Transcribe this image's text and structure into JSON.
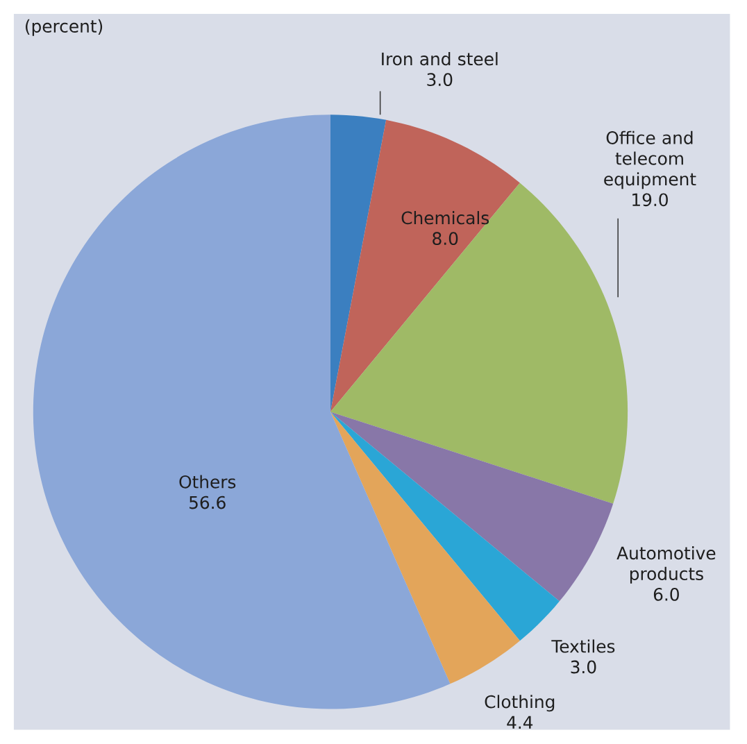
{
  "chart_data": {
    "type": "pie",
    "title": "(percent)",
    "categories": [
      "Iron and steel",
      "Chemicals",
      "Office and telecom equipment",
      "Automotive products",
      "Textiles",
      "Clothing",
      "Others"
    ],
    "values": [
      3.0,
      8.0,
      19.0,
      6.0,
      3.0,
      4.4,
      56.6
    ],
    "colors": [
      "#3b7fc0",
      "#c0645a",
      "#9fba66",
      "#8877a8",
      "#2aa6d6",
      "#e3a55a",
      "#8ba7d8"
    ],
    "value_labels": [
      "3.0",
      "8.0",
      "19.0",
      "6.0",
      "3.0",
      "4.4",
      "56.6"
    ]
  }
}
